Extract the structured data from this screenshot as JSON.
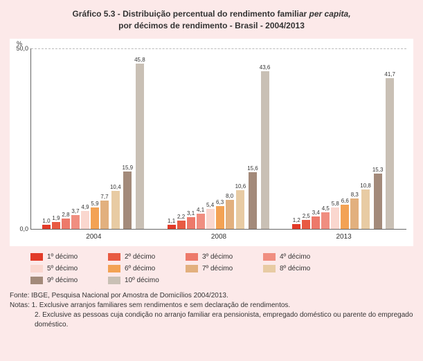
{
  "title_line1_prefix": "Gráfico 5.3 - Distribuição percentual do rendimento familiar ",
  "title_line1_italic": "per capita,",
  "title_line2": "por décimos de rendimento - Brasil - 2004/2013",
  "chart": {
    "type": "bar",
    "y_unit": "%",
    "ylim_max": 50.0,
    "ytick_top": "50,0",
    "ytick_bottom": "0,0",
    "background_color": "#ffffff",
    "container_bg": "#fce9e9",
    "series_colors": [
      "#e23a28",
      "#e85a42",
      "#ed796a",
      "#f08e80",
      "#fad7cf",
      "#f3a254",
      "#e2b07e",
      "#e8cba3",
      "#a38a7a",
      "#c9c0b5"
    ],
    "series_labels": [
      "1º décimo",
      "2º décimo",
      "3º décimo",
      "4º décimo",
      "5º décimo",
      "6º décimo",
      "7º décimo",
      "8º décimo",
      "9º décimo",
      "10º décimo"
    ],
    "groups": [
      {
        "label": "2004",
        "values": [
          1.0,
          1.9,
          2.8,
          3.7,
          4.9,
          5.9,
          7.7,
          10.4,
          15.9,
          45.8
        ],
        "value_labels": [
          "1,0",
          "1,9",
          "2,8",
          "3,7",
          "4,9",
          "5,9",
          "7,7",
          "10,4",
          "15,9",
          "45,8"
        ]
      },
      {
        "label": "2008",
        "values": [
          1.1,
          2.2,
          3.1,
          4.1,
          5.4,
          6.3,
          8.0,
          10.6,
          15.6,
          43.6
        ],
        "value_labels": [
          "1,1",
          "2,2",
          "3,1",
          "4,1",
          "5,4",
          "6,3",
          "8,0",
          "10,6",
          "15,6",
          "43,6"
        ]
      },
      {
        "label": "2013",
        "values": [
          1.2,
          2.5,
          3.4,
          4.5,
          5.8,
          6.6,
          8.3,
          10.8,
          15.3,
          41.7
        ],
        "value_labels": [
          "1,2",
          "2,5",
          "3,4",
          "4,5",
          "5,8",
          "6,6",
          "8,3",
          "10,8",
          "15,3",
          "41,7"
        ]
      }
    ]
  },
  "footer": {
    "fonte": "Fonte: IBGE, Pesquisa Nacional por Amostra de Domicílios 2004/2013.",
    "nota1": "Notas: 1. Exclusive arranjos familiares sem rendimentos e sem declaração de rendimentos.",
    "nota2": "2. Exclusive as pessoas cuja condição no arranjo familiar era pensionista, empregado doméstico ou parente do empregado doméstico."
  }
}
